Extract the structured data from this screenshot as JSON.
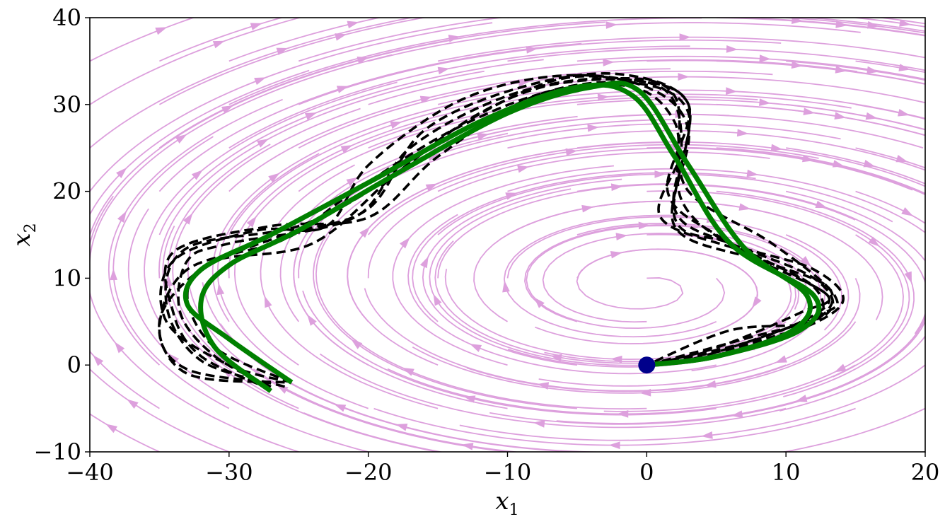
{
  "chart_data": {
    "type": "line",
    "title": "",
    "xlabel": "x",
    "xlabel_sub": "1",
    "ylabel": "x",
    "ylabel_sub": "2",
    "xlim": [
      -40,
      20
    ],
    "ylim": [
      -10,
      40
    ],
    "x_ticks": [
      -40,
      -30,
      -20,
      -10,
      0,
      10,
      20
    ],
    "y_ticks": [
      -10,
      0,
      10,
      20,
      30,
      40
    ],
    "x_tick_labels": [
      "−40",
      "−30",
      "−20",
      "−10",
      "0",
      "10",
      "20"
    ],
    "y_tick_labels": [
      "−10",
      "0",
      "10",
      "20",
      "30",
      "40"
    ],
    "grid": false,
    "legend": "none",
    "colors": {
      "stream": "#dda0dd",
      "reference": "#008000",
      "samples": "#000000",
      "point": "#00008b"
    },
    "vector_field": {
      "kind": "streamplot",
      "center": [
        0,
        9
      ],
      "rotation": "clockwise"
    },
    "series": [
      {
        "style": "solid-green",
        "x": [
          -25.5,
          -30,
          -33,
          -32,
          -27,
          -20,
          -12,
          -5,
          -1,
          2,
          6,
          12,
          11,
          5,
          0
        ],
        "y": [
          -2,
          3,
          7,
          11,
          15,
          21,
          28,
          32,
          31,
          24,
          14,
          8,
          4,
          1,
          0
        ]
      },
      {
        "style": "solid-green",
        "x": [
          -27,
          -31,
          -32,
          -30,
          -25,
          -18,
          -10,
          -4,
          -0.5,
          3,
          7,
          11.5,
          10.5,
          5,
          0
        ],
        "y": [
          -3,
          2,
          7.5,
          11.5,
          15.5,
          22,
          29,
          32,
          31.5,
          23,
          13.5,
          8,
          4,
          1,
          0
        ]
      },
      {
        "style": "dashed-black",
        "x": [
          -25.5,
          -30,
          -34.5,
          -34,
          -28,
          -23,
          -20,
          -14,
          -8,
          -2,
          3,
          2,
          6,
          12,
          13,
          7,
          0
        ],
        "y": [
          -2,
          0,
          5,
          12,
          15.5,
          16,
          23,
          30,
          33,
          33,
          30,
          17,
          14,
          10,
          6,
          3,
          0
        ]
      },
      {
        "style": "dashed-black",
        "x": [
          -27,
          -31,
          -33.5,
          -33,
          -30,
          -21,
          -17,
          -10,
          -3,
          2,
          2.5,
          7,
          13,
          12,
          6,
          0
        ],
        "y": [
          -2.5,
          1,
          6,
          12,
          14,
          17,
          25,
          31,
          33,
          31,
          19,
          13,
          9,
          5,
          2,
          0
        ]
      },
      {
        "style": "dashed-black",
        "x": [
          -26,
          -33,
          -35,
          -32,
          -26,
          -20,
          -16,
          -9,
          -2,
          3,
          1.5,
          5,
          11,
          13,
          8,
          0
        ],
        "y": [
          -2,
          -1,
          5,
          11,
          15,
          18,
          27,
          32,
          33.5,
          30,
          20,
          15,
          10,
          7,
          3,
          0
        ]
      },
      {
        "style": "dashed-black",
        "x": [
          -27,
          -32,
          -34,
          -34,
          -27,
          -20,
          -15,
          -8,
          -1,
          3,
          2,
          6,
          12,
          14,
          9,
          0
        ],
        "y": [
          -2.8,
          1,
          6,
          13,
          16,
          17,
          24,
          31,
          32.5,
          29,
          18,
          14,
          11,
          7,
          3,
          0
        ]
      },
      {
        "style": "dashed-black",
        "x": [
          -25.5,
          -31,
          -33,
          -31,
          -24,
          -18,
          -12,
          -6,
          1,
          2.5,
          1,
          7,
          12,
          12,
          6,
          0
        ],
        "y": [
          -2,
          2,
          8,
          12,
          14,
          22,
          29,
          32.5,
          32,
          25,
          17,
          13,
          9,
          5,
          4,
          0
        ]
      },
      {
        "style": "dashed-black",
        "x": [
          -26,
          -32,
          -34.5,
          -33,
          -25,
          -19,
          -13,
          -6,
          0,
          3,
          2,
          8,
          13,
          11,
          5,
          0
        ],
        "y": [
          -2.5,
          0.5,
          7,
          13.5,
          16,
          21,
          28,
          33,
          32,
          27,
          16,
          12,
          8,
          6,
          2,
          0
        ]
      },
      {
        "style": "dashed-black",
        "x": [
          -27,
          -33,
          -35,
          -33,
          -26,
          -21,
          -14,
          -7,
          -1,
          2,
          3,
          9,
          13.5,
          12,
          4,
          0
        ],
        "y": [
          -2,
          -0.5,
          4,
          11,
          14.5,
          20,
          27,
          31.5,
          32,
          28,
          20,
          14,
          8,
          5.5,
          1,
          0
        ]
      }
    ],
    "points": [
      {
        "x": 0,
        "y": 0
      }
    ]
  }
}
